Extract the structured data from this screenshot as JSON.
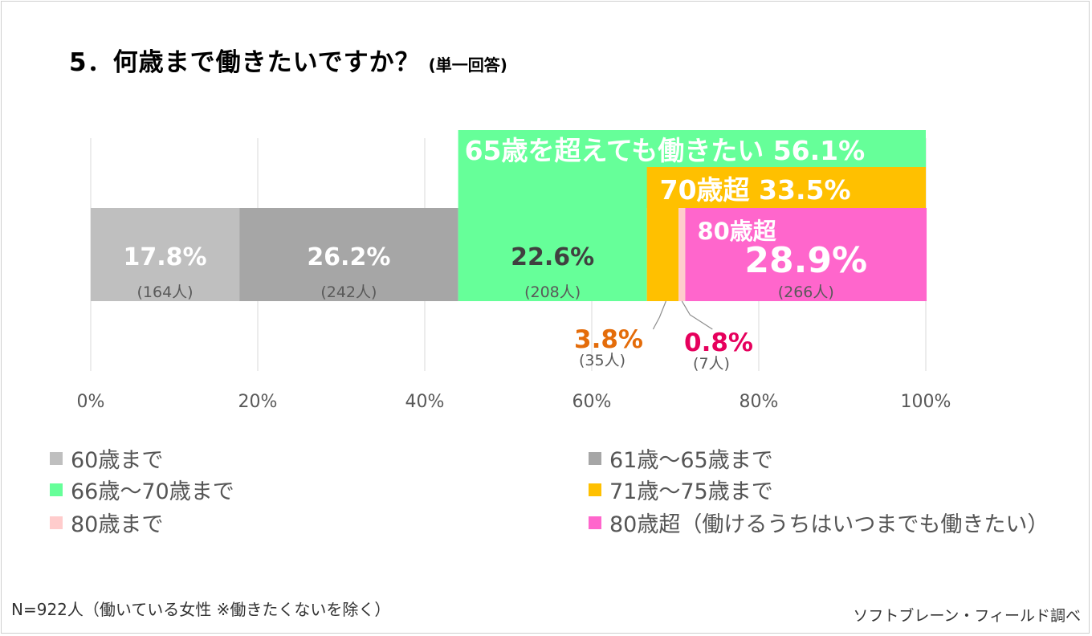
{
  "title": "5．何歳まで働きたいですか？",
  "subtitle": "(単一回答)",
  "colors": {
    "s60": "#bfbfbf",
    "s61_65": "#a6a6a6",
    "s66_70": "#66ff99",
    "s71_75": "#ffc000",
    "s80": "#ffcccc",
    "s80plus": "#ff66cc",
    "label_orange": "#e46c0a",
    "label_red": "#e6005c"
  },
  "chart_data": {
    "type": "bar",
    "orientation": "horizontal-stacked",
    "xlim": [
      0,
      100
    ],
    "x_ticks": [
      "0%",
      "20%",
      "40%",
      "60%",
      "80%",
      "100%"
    ],
    "grid": true,
    "series": [
      {
        "name": "60歳まで",
        "value": 17.8,
        "label": "17.8%",
        "count_label": "(164人)"
      },
      {
        "name": "61歳～65歳まで",
        "value": 26.2,
        "label": "26.2%",
        "count_label": "(242人)"
      },
      {
        "name": "66歳～70歳まで",
        "value": 22.6,
        "label": "22.6%",
        "count_label": "(208人)"
      },
      {
        "name": "71歳～75歳まで",
        "value": 3.8,
        "label": "3.8%",
        "count_label": "(35人)"
      },
      {
        "name": "80歳まで",
        "value": 0.8,
        "label": "0.8%",
        "count_label": "(7人)"
      },
      {
        "name": "80歳超（働けるうちはいつまでも働きたい）",
        "value": 28.9,
        "label": "28.9%",
        "count_label": "(266人)"
      }
    ],
    "annotations": [
      {
        "text": "65歳を超えても働きたい 56.1%",
        "from": 44.0,
        "to": 100
      },
      {
        "text": "70歳超  33.5%",
        "from": 66.6,
        "to": 100
      },
      {
        "text": "80歳超",
        "from": 71.1,
        "to": 100
      }
    ]
  },
  "legend": [
    {
      "label": "60歳まで",
      "color": "#bfbfbf"
    },
    {
      "label": "61歳～65歳まで",
      "color": "#a6a6a6"
    },
    {
      "label": "66歳～70歳まで",
      "color": "#66ff99"
    },
    {
      "label": "71歳～75歳まで",
      "color": "#ffc000"
    },
    {
      "label": "80歳まで",
      "color": "#ffcccc"
    },
    {
      "label": "80歳超（働けるうちはいつまでも働きたい）",
      "color": "#ff66cc"
    }
  ],
  "footnote": "N=922人（働いている女性 ※働きたくないを除く）",
  "credit": "ソフトブレーン・フィールド調べ"
}
